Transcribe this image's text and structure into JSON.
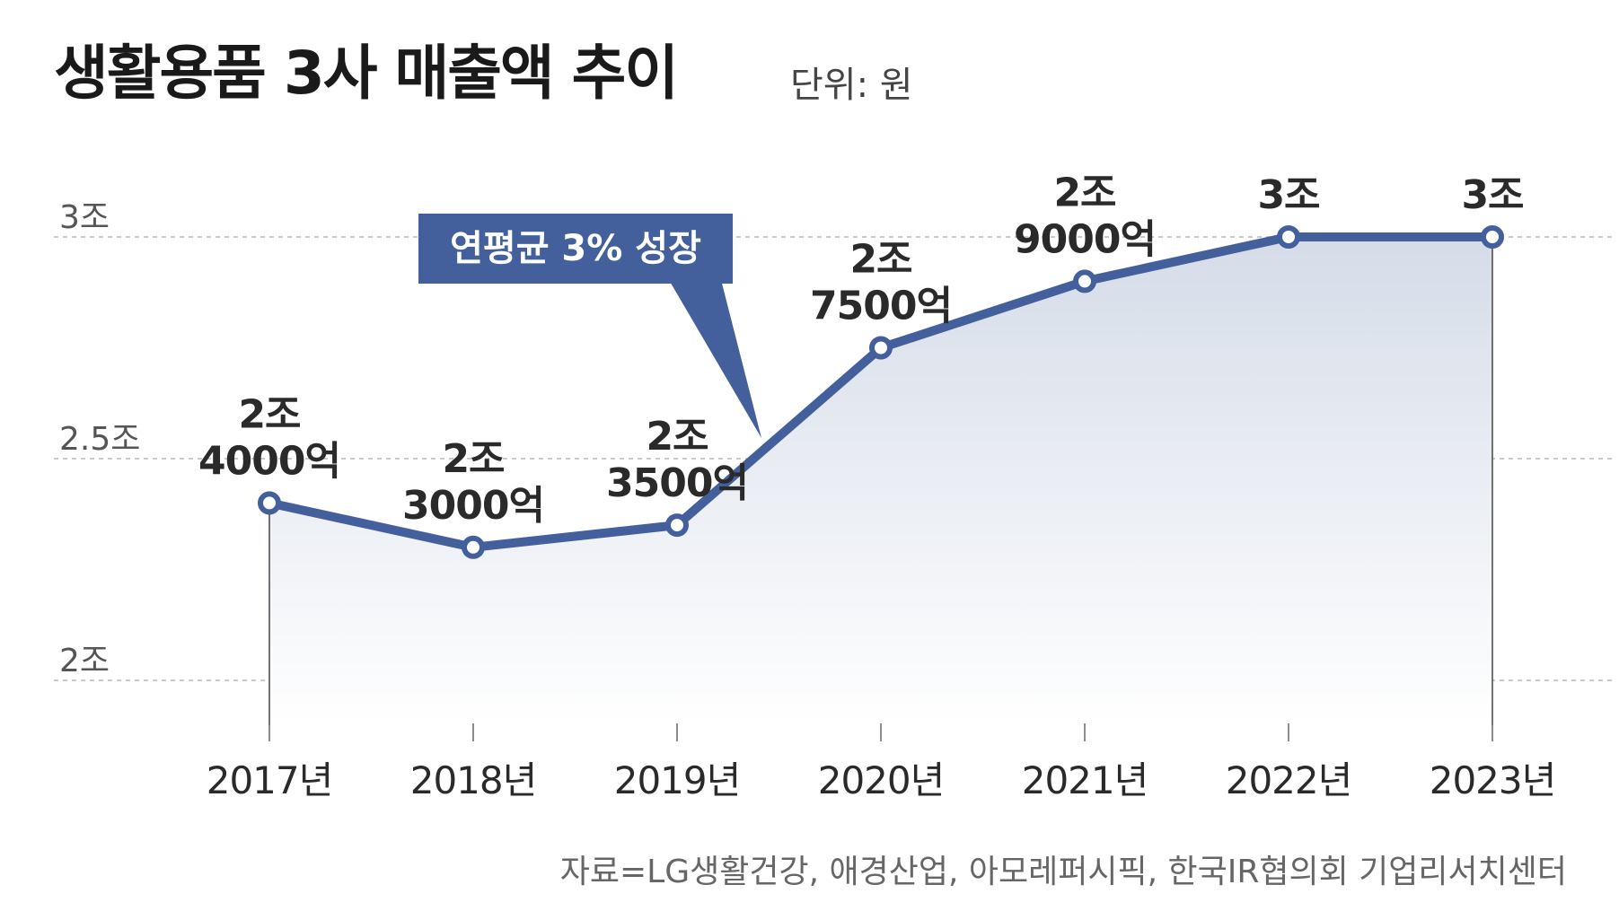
{
  "header": {
    "title": "생활용품 3사 매출액 추이",
    "unit": "단위: 원"
  },
  "source": "자료=LG생활건강, 애경산업, 아모레퍼시픽, 한국IR협의회 기업리서치센터",
  "colors": {
    "line": "#43609c",
    "area_top": "#d5dce8",
    "area_bottom": "#ffffff",
    "grid": "#b8b8b8",
    "callout_bg": "#43609c",
    "callout_text": "#ffffff"
  },
  "chart_data": {
    "type": "line",
    "title": "생활용품 3사 매출액 추이",
    "x": [
      "2017년",
      "2018년",
      "2019년",
      "2020년",
      "2021년",
      "2022년",
      "2023년"
    ],
    "series": [
      {
        "values": [
          2.4,
          2.3,
          2.35,
          2.75,
          2.9,
          3.0,
          3.0
        ]
      }
    ],
    "data_labels": [
      [
        "2조",
        "4000억"
      ],
      [
        "2조",
        "3000억"
      ],
      [
        "2조",
        "3500억"
      ],
      [
        "2조",
        "7500억"
      ],
      [
        "2조",
        "9000억"
      ],
      [
        "3조"
      ],
      [
        "3조"
      ]
    ],
    "y_ticks": [
      {
        "value": 2.0,
        "label": "2조"
      },
      {
        "value": 2.5,
        "label": "2.5조"
      },
      {
        "value": 3.0,
        "label": "3조"
      }
    ],
    "ylim": [
      1.88,
      3.25
    ],
    "grid": true,
    "grid_style": "dashed",
    "area_fill": true,
    "annotation": "연평균 3% 성장"
  }
}
